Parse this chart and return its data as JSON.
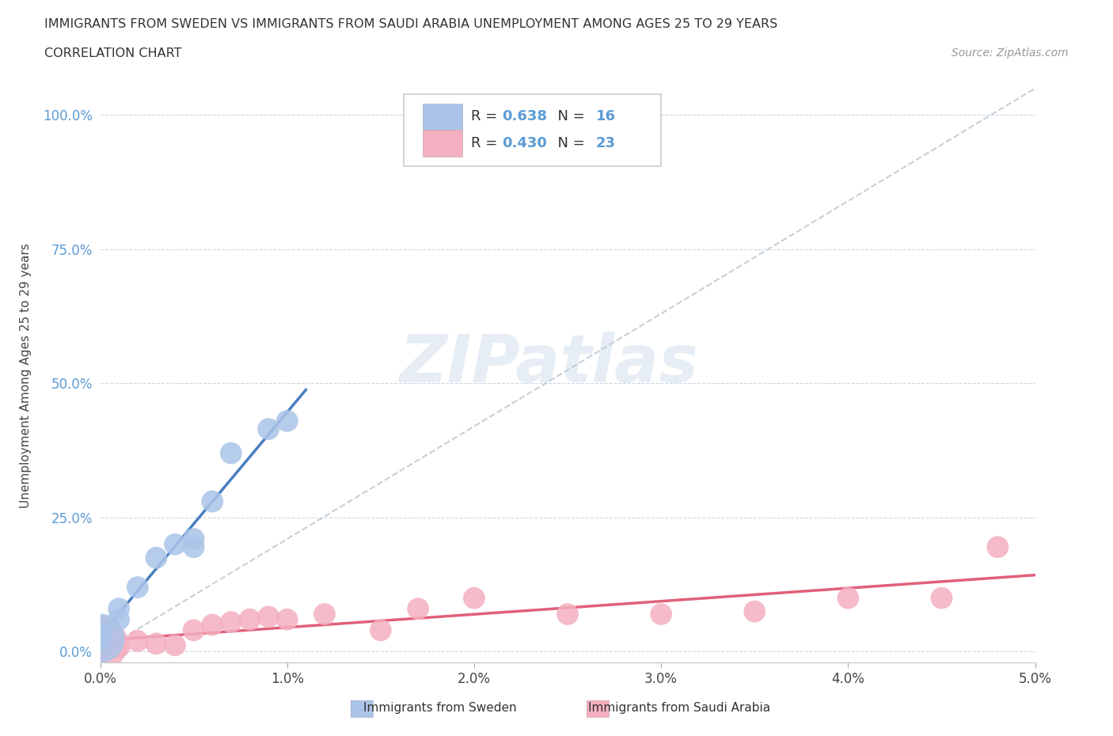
{
  "title_line1": "IMMIGRANTS FROM SWEDEN VS IMMIGRANTS FROM SAUDI ARABIA UNEMPLOYMENT AMONG AGES 25 TO 29 YEARS",
  "title_line2": "CORRELATION CHART",
  "source": "Source: ZipAtlas.com",
  "xlabel_ticks": [
    "0.0%",
    "1.0%",
    "2.0%",
    "3.0%",
    "4.0%",
    "5.0%"
  ],
  "ylabel_ticks": [
    "0.0%",
    "25.0%",
    "50.0%",
    "75.0%",
    "100.0%"
  ],
  "xlim": [
    0.0,
    0.05
  ],
  "ylim": [
    -0.02,
    1.05
  ],
  "watermark": "ZIPatlas",
  "legend_sweden_R": "0.638",
  "legend_sweden_N": "16",
  "legend_saudi_R": "0.430",
  "legend_saudi_N": "23",
  "sweden_color": "#aac4e8",
  "saudi_color": "#f4afc0",
  "sweden_line_color": "#4a7fc1",
  "saudi_line_color": "#e0607a",
  "diagonal_color": "#b8c4d0",
  "sweden_scatter_x": [
    0.0,
    0.0,
    0.0,
    0.0,
    0.0,
    0.001,
    0.001,
    0.002,
    0.003,
    0.004,
    0.005,
    0.005,
    0.006,
    0.007,
    0.009,
    0.01
  ],
  "sweden_scatter_y": [
    0.02,
    0.025,
    0.03,
    0.035,
    0.04,
    0.06,
    0.08,
    0.12,
    0.175,
    0.2,
    0.195,
    0.21,
    0.28,
    0.37,
    0.415,
    0.43
  ],
  "saudi_scatter_x": [
    0.0,
    0.0,
    0.0,
    0.001,
    0.002,
    0.003,
    0.004,
    0.005,
    0.006,
    0.007,
    0.008,
    0.009,
    0.01,
    0.012,
    0.015,
    0.017,
    0.02,
    0.025,
    0.03,
    0.035,
    0.04,
    0.045,
    0.048
  ],
  "saudi_scatter_y": [
    0.005,
    0.01,
    0.015,
    0.008,
    0.02,
    0.015,
    0.012,
    0.04,
    0.05,
    0.055,
    0.06,
    0.065,
    0.06,
    0.07,
    0.04,
    0.08,
    0.1,
    0.07,
    0.07,
    0.075,
    0.1,
    0.1,
    0.195
  ]
}
